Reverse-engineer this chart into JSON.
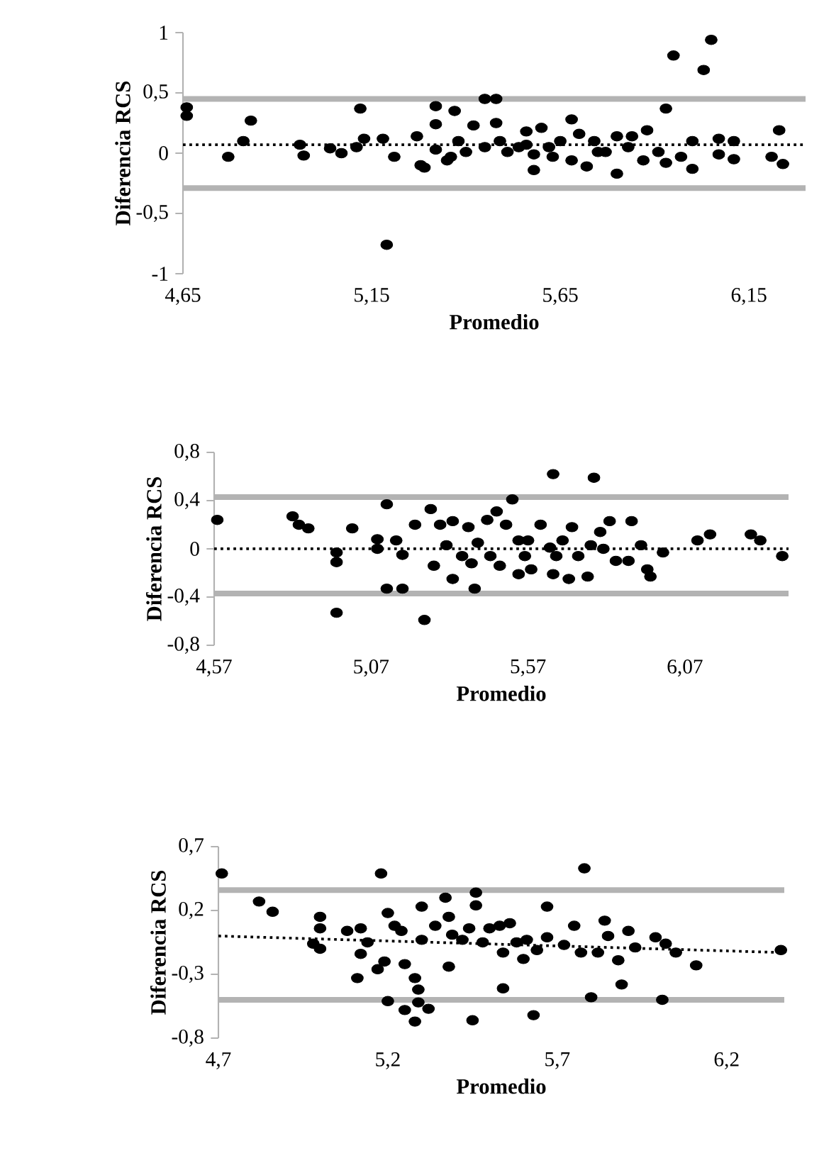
{
  "chart_data": [
    {
      "type": "scatter",
      "xlabel": "Promedio",
      "ylabel": "Diferencia RCS",
      "marker": "circle",
      "xlim": [
        4.65,
        6.3
      ],
      "ylim": [
        -1,
        1
      ],
      "xticks": [
        {
          "value": 4.65,
          "label": "4,65"
        },
        {
          "value": 5.15,
          "label": "5,15"
        },
        {
          "value": 5.65,
          "label": "5,65"
        },
        {
          "value": 6.15,
          "label": "6,15"
        }
      ],
      "yticks": [
        -1,
        {
          "value": -0.5,
          "label": "-0,5"
        },
        0,
        {
          "value": 0.5,
          "label": "0,5"
        },
        1
      ],
      "ref_lines": [
        {
          "axis": "y",
          "value": 0.45,
          "color": "#b3b3b3",
          "line_style": "solid"
        },
        {
          "axis": "y",
          "value": -0.29,
          "color": "#b3b3b3",
          "line_style": "solid"
        },
        {
          "axis": "y",
          "value": 0.07,
          "color": "#000000",
          "line_style": "dotted"
        }
      ],
      "series": [
        {
          "color": "#000000",
          "x": [
            4.66,
            4.66,
            4.77,
            4.81,
            4.83,
            4.96,
            4.97,
            5.04,
            5.07,
            5.11,
            5.12,
            5.13,
            5.18,
            5.19,
            5.21,
            5.27,
            5.28,
            5.29,
            5.32,
            5.32,
            5.32,
            5.35,
            5.37,
            5.38,
            5.4,
            5.42,
            5.45,
            5.48,
            5.48,
            5.49,
            5.51,
            5.54,
            5.56,
            5.58,
            5.58,
            5.6,
            5.63,
            5.65,
            5.68,
            5.68,
            5.7,
            5.72,
            5.74,
            5.77,
            5.8,
            5.8,
            5.83,
            5.84,
            5.87,
            5.88,
            5.91,
            5.93,
            5.93,
            5.95,
            5.97,
            6.0,
            6.0,
            6.03,
            6.05,
            6.07,
            6.07,
            6.11,
            6.11,
            6.21,
            6.23,
            6.24,
            5.56,
            5.62,
            5.45,
            5.36,
            5.75
          ],
          "values": [
            0.31,
            0.38,
            -0.03,
            0.1,
            0.27,
            0.07,
            -0.02,
            0.04,
            0,
            0.05,
            0.37,
            0.12,
            0.12,
            -0.76,
            -0.03,
            0.14,
            -0.1,
            -0.12,
            0.39,
            0.24,
            0.03,
            -0.06,
            0.35,
            0.1,
            0.01,
            0.23,
            0.45,
            0.45,
            0.25,
            0.1,
            0.01,
            0.05,
            0.18,
            -0.01,
            -0.14,
            0.21,
            -0.03,
            0.1,
            0.28,
            -0.06,
            0.16,
            -0.11,
            0.1,
            0.01,
            -0.17,
            0.14,
            0.05,
            0.14,
            -0.06,
            0.19,
            0.01,
            0.37,
            -0.08,
            0.81,
            -0.03,
            0.1,
            -0.13,
            0.69,
            0.94,
            -0.01,
            0.12,
            0.1,
            -0.05,
            -0.03,
            0.19,
            -0.09,
            0.07,
            0.05,
            0.05,
            -0.03,
            0.01
          ]
        }
      ]
    },
    {
      "type": "scatter",
      "xlabel": "Promedio",
      "ylabel": "Diferencia RCS",
      "marker": "circle",
      "xlim": [
        4.57,
        6.4
      ],
      "ylim": [
        -0.8,
        0.8
      ],
      "xticks": [
        {
          "value": 4.57,
          "label": "4,57"
        },
        {
          "value": 5.07,
          "label": "5,07"
        },
        {
          "value": 5.57,
          "label": "5,57"
        },
        {
          "value": 6.07,
          "label": "6,07"
        }
      ],
      "yticks": [
        {
          "value": -0.8,
          "label": "-0,8"
        },
        {
          "value": -0.4,
          "label": "-0,4"
        },
        0,
        {
          "value": 0.4,
          "label": "0,4"
        },
        {
          "value": 0.8,
          "label": "0,8"
        }
      ],
      "ref_lines": [
        {
          "axis": "y",
          "value": 0.43,
          "color": "#b3b3b3",
          "line_style": "solid"
        },
        {
          "axis": "y",
          "value": -0.37,
          "color": "#b3b3b3",
          "line_style": "solid"
        },
        {
          "axis": "y",
          "value": 0,
          "color": "#000000",
          "line_style": "dotted"
        }
      ],
      "series": [
        {
          "color": "#000000",
          "x": [
            4.58,
            4.82,
            4.84,
            4.87,
            4.96,
            4.96,
            4.96,
            5.01,
            5.09,
            5.09,
            5.12,
            5.15,
            5.12,
            5.17,
            5.17,
            5.21,
            5.24,
            5.26,
            5.27,
            5.29,
            5.31,
            5.33,
            5.33,
            5.36,
            5.38,
            5.39,
            5.4,
            5.41,
            5.44,
            5.45,
            5.47,
            5.48,
            5.5,
            5.52,
            5.54,
            5.54,
            5.56,
            5.58,
            5.61,
            5.64,
            5.65,
            5.65,
            5.68,
            5.7,
            5.71,
            5.73,
            5.76,
            5.77,
            5.78,
            5.8,
            5.83,
            5.85,
            5.89,
            5.9,
            5.93,
            5.95,
            5.96,
            6.0,
            6.11,
            6.15,
            6.28,
            6.31,
            6.38,
            5.57,
            5.66,
            5.81
          ],
          "values": [
            0.24,
            0.27,
            0.2,
            0.17,
            -0.03,
            -0.11,
            -0.53,
            0.17,
            0.08,
            0,
            0.37,
            0.07,
            -0.33,
            -0.05,
            -0.33,
            0.2,
            -0.59,
            0.33,
            -0.14,
            0.2,
            0.03,
            0.23,
            -0.25,
            -0.06,
            0.18,
            -0.12,
            -0.33,
            0.05,
            0.24,
            -0.06,
            0.31,
            -0.14,
            0.2,
            0.41,
            0.07,
            -0.21,
            -0.06,
            -0.17,
            0.2,
            0.01,
            0.62,
            -0.21,
            0.07,
            -0.25,
            0.18,
            -0.06,
            -0.23,
            0.03,
            0.59,
            0.14,
            0.23,
            -0.1,
            -0.1,
            0.23,
            0.03,
            -0.17,
            -0.23,
            -0.03,
            0.07,
            0.12,
            0.12,
            0.07,
            -0.06,
            0.07,
            -0.06,
            0
          ]
        }
      ]
    },
    {
      "type": "scatter",
      "xlabel": "Promedio",
      "ylabel": "Diferencia RCS",
      "xlim": [
        4.7,
        6.37
      ],
      "ylim": [
        -0.8,
        0.7
      ],
      "xticks": [
        {
          "value": 4.7,
          "label": "4,7"
        },
        {
          "value": 5.2,
          "label": "5,2"
        },
        {
          "value": 5.7,
          "label": "5,7"
        },
        {
          "value": 6.2,
          "label": "6,2"
        }
      ],
      "yticks": [
        {
          "value": -0.8,
          "label": "-0,8"
        },
        {
          "value": -0.3,
          "label": "-0,3"
        },
        {
          "value": 0.2,
          "label": "0,2"
        },
        {
          "value": 0.7,
          "label": "0,7"
        }
      ],
      "ref_lines": [
        {
          "axis": "y",
          "value": 0.36,
          "color": "#b3b3b3",
          "line_style": "solid"
        },
        {
          "axis": "y",
          "value": -0.5,
          "color": "#b3b3b3",
          "line_style": "solid"
        }
      ],
      "series": [
        {
          "color": "#000000",
          "marker": "circle",
          "x": [
            4.71,
            4.82,
            4.86,
            5.0,
            5.0,
            4.98,
            5.0,
            5.08,
            5.12,
            5.11,
            5.12,
            5.14,
            5.18,
            5.17,
            5.19,
            5.2,
            5.2,
            5.22,
            5.24,
            5.25,
            5.25,
            5.28,
            5.28,
            5.29,
            5.29,
            5.3,
            5.32,
            5.3,
            5.34,
            5.37,
            5.38,
            5.38,
            5.39,
            5.42,
            5.44,
            5.45,
            5.46,
            5.46,
            5.48,
            5.5,
            5.53,
            5.54,
            5.54,
            5.56,
            5.58,
            5.6,
            5.61,
            5.63,
            5.64,
            5.67,
            5.67,
            5.72,
            5.75,
            5.77,
            5.78,
            5.8,
            5.82,
            5.84,
            5.85,
            5.88,
            5.89,
            5.91,
            5.93,
            5.99,
            6.01,
            6.02,
            6.05,
            6.11,
            6.36
          ],
          "values": [
            0.49,
            0.27,
            0.19,
            0.15,
            0.06,
            -0.06,
            -0.1,
            0.04,
            0.06,
            -0.33,
            -0.14,
            -0.05,
            0.49,
            -0.26,
            -0.2,
            -0.51,
            0.18,
            0.08,
            0.04,
            -0.58,
            -0.22,
            -0.67,
            -0.33,
            -0.52,
            -0.42,
            0.23,
            -0.57,
            -0.03,
            0.08,
            0.3,
            -0.24,
            0.15,
            0.01,
            -0.03,
            0.06,
            -0.66,
            0.34,
            0.24,
            -0.05,
            0.06,
            0.08,
            -0.41,
            -0.13,
            0.1,
            -0.05,
            -0.18,
            -0.03,
            -0.62,
            -0.11,
            0.23,
            -0.01,
            -0.07,
            0.08,
            -0.13,
            0.53,
            -0.48,
            -0.13,
            0.12,
            0,
            -0.19,
            -0.38,
            0.04,
            -0.09,
            -0.01,
            -0.5,
            -0.06,
            -0.13,
            -0.23,
            -0.11
          ]
        },
        {
          "type": "line",
          "color": "#000000",
          "marker": "none",
          "line_style": "dotted",
          "x": [
            4.7,
            6.37
          ],
          "values": [
            0.0,
            -0.13
          ]
        }
      ]
    }
  ]
}
